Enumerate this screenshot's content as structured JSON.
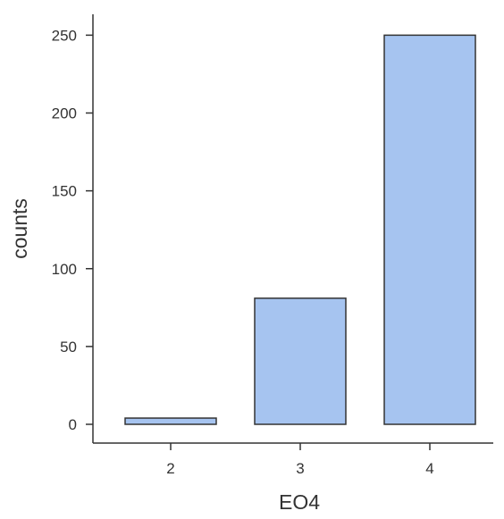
{
  "chart_data": {
    "type": "bar",
    "categories": [
      "2",
      "3",
      "4"
    ],
    "values": [
      4,
      81,
      250
    ],
    "title": "",
    "xlabel": "EO4",
    "ylabel": "counts",
    "ylim": [
      0,
      260
    ],
    "y_ticks": [
      0,
      50,
      100,
      150,
      200,
      250
    ],
    "grid": false,
    "legend": "none",
    "colors": {
      "bar_fill": "#a6c4f0",
      "bar_stroke": "#333333",
      "axis": "#333333",
      "text": "#333333"
    }
  }
}
